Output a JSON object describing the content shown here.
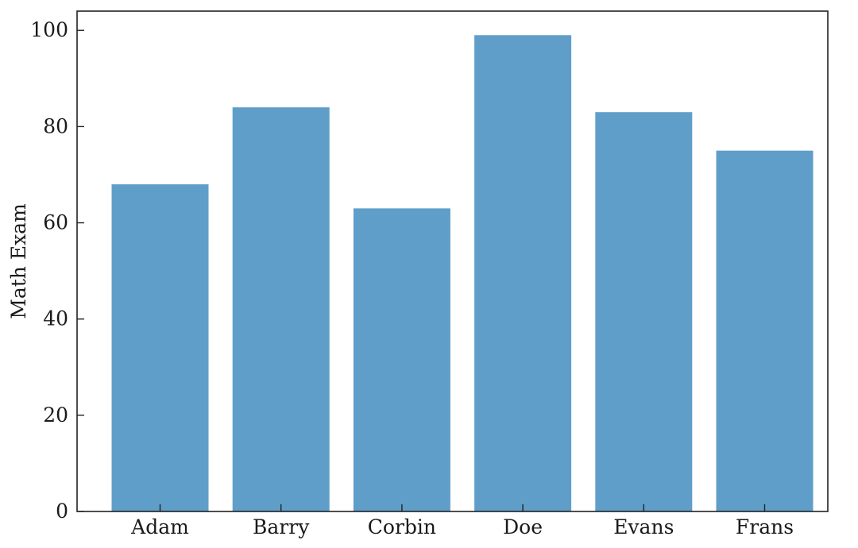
{
  "chart_data": {
    "type": "bar",
    "categories": [
      "Adam",
      "Barry",
      "Corbin",
      "Doe",
      "Evans",
      "Frans"
    ],
    "values": [
      68,
      84,
      63,
      99,
      83,
      75
    ],
    "title": "",
    "xlabel": "",
    "ylabel": "Math Exam",
    "ylim": [
      0,
      104
    ],
    "yticks": [
      0,
      20,
      40,
      60,
      80,
      100
    ],
    "ytick_labels": [
      "0",
      "20",
      "40",
      "60",
      "80",
      "100"
    ],
    "grid": false,
    "bar_color": "#5f9ec9"
  }
}
